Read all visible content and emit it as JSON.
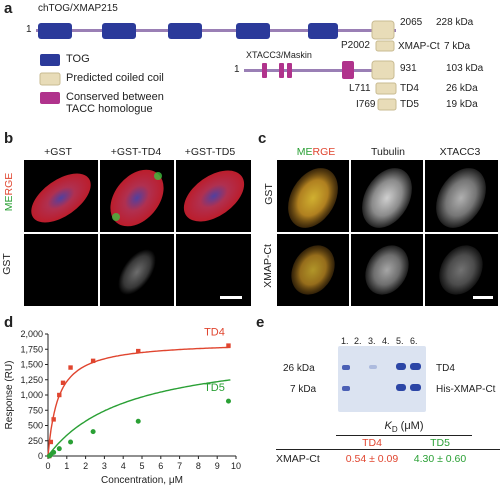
{
  "panel_a": {
    "label": "a",
    "chtog_title": "chTOG/XMAP215",
    "chtog_start": "1",
    "chtog_end": "2065",
    "chtog_mass": "228 kDa",
    "xmap_ct_start": "P2002",
    "xmap_ct_name": "XMAP-Ct",
    "xmap_ct_mass": "7 kDa",
    "legend": [
      {
        "label": "TOG",
        "color": "#2b3a9a"
      },
      {
        "label": "Predicted coiled coil",
        "color": "#e8dcb8"
      },
      {
        "label": "Conserved between\nTACC homologue",
        "color": "#b0338c"
      }
    ],
    "xtacc_title": "XTACC3/Maskin",
    "xtacc_start": "1",
    "xtacc_end": "931",
    "xtacc_mass": "103 kDa",
    "td4_start": "L711",
    "td4_name": "TD4",
    "td4_mass": "26 kDa",
    "td5_start": "I769",
    "td5_name": "TD5",
    "td5_mass": "19 kDa"
  },
  "panel_b": {
    "label": "b",
    "columns": [
      "+GST",
      "+GST-TD4",
      "+GST-TD5"
    ],
    "row_labels": [
      "MERGE",
      "GST"
    ]
  },
  "panel_c": {
    "label": "c",
    "columns": [
      "MERGE",
      "Tubulin",
      "XTACC3"
    ],
    "row_labels": [
      "GST",
      "XMAP-Ct"
    ]
  },
  "panel_d": {
    "label": "d",
    "chart_data": {
      "type": "scatter",
      "xlabel": "Concentration, μM",
      "ylabel": "Response (RU)",
      "xlim": [
        0,
        10
      ],
      "ylim": [
        0,
        2000
      ],
      "xticks": [
        0,
        1,
        2,
        3,
        4,
        5,
        6,
        7,
        8,
        9,
        10
      ],
      "yticks": [
        "0",
        "250",
        "500",
        "750",
        "1,000",
        "1,250",
        "1,500",
        "1,750",
        "2,000"
      ],
      "ytick_values": [
        0,
        250,
        500,
        750,
        1000,
        1250,
        1500,
        1750,
        2000
      ],
      "series": [
        {
          "name": "TD4",
          "color": "#e0452f",
          "points": [
            [
              0.075,
              0
            ],
            [
              0.15,
              230
            ],
            [
              0.3,
              600
            ],
            [
              0.6,
              1000
            ],
            [
              0.8,
              1200
            ],
            [
              1.2,
              1450
            ],
            [
              2.4,
              1560
            ],
            [
              4.8,
              1720
            ],
            [
              9.6,
              1810
            ]
          ],
          "fit_bmax": 1880,
          "fit_kd": 0.54
        },
        {
          "name": "TD5",
          "color": "#2aa035",
          "points": [
            [
              0.075,
              0
            ],
            [
              0.15,
              20
            ],
            [
              0.3,
              60
            ],
            [
              0.6,
              120
            ],
            [
              1.2,
              230
            ],
            [
              2.4,
              400
            ],
            [
              4.8,
              570
            ],
            [
              9.6,
              900
            ]
          ],
          "fit_bmax": 1800,
          "fit_kd": 4.3
        }
      ]
    }
  },
  "panel_e": {
    "label": "e",
    "lanes": [
      "1.",
      "2.",
      "3.",
      "4.",
      "5.",
      "6."
    ],
    "marker_left": [
      "26 kDa",
      "7 kDa"
    ],
    "band_right": [
      "TD4",
      "His-XMAP-Ct"
    ],
    "kd_header": "K",
    "kd_sub": "D",
    "kd_unit": " (μM)",
    "col_td4": "TD4",
    "col_td5": "TD5",
    "row_name": "XMAP-Ct",
    "val_td4": "0.54 ± 0.09",
    "val_td5": "4.30 ± 0.60",
    "td4_color": "#e0452f",
    "td5_color": "#2aa035"
  }
}
